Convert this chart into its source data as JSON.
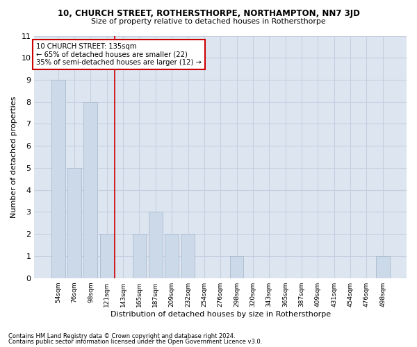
{
  "title": "10, CHURCH STREET, ROTHERSTHORPE, NORTHAMPTON, NN7 3JD",
  "subtitle": "Size of property relative to detached houses in Rothersthorpe",
  "xlabel": "Distribution of detached houses by size in Rothersthorpe",
  "ylabel": "Number of detached properties",
  "footer1": "Contains HM Land Registry data © Crown copyright and database right 2024.",
  "footer2": "Contains public sector information licensed under the Open Government Licence v3.0.",
  "categories": [
    "54sqm",
    "76sqm",
    "98sqm",
    "121sqm",
    "143sqm",
    "165sqm",
    "187sqm",
    "209sqm",
    "232sqm",
    "254sqm",
    "276sqm",
    "298sqm",
    "320sqm",
    "343sqm",
    "365sqm",
    "387sqm",
    "409sqm",
    "431sqm",
    "454sqm",
    "476sqm",
    "498sqm"
  ],
  "values": [
    9,
    5,
    8,
    2,
    0,
    2,
    3,
    2,
    2,
    0,
    0,
    1,
    0,
    0,
    0,
    0,
    0,
    0,
    0,
    0,
    1
  ],
  "bar_color": "#ccd9e8",
  "bar_edge_color": "#aabbd0",
  "grid_color": "#c5cfe0",
  "background_color": "#dde6f0",
  "annotation_text": "10 CHURCH STREET: 135sqm\n← 65% of detached houses are smaller (22)\n35% of semi-detached houses are larger (12) →",
  "annotation_box_color": "#cc0000",
  "vline_x_index": 3.5,
  "vline_color": "#cc0000",
  "ylim": [
    0,
    11
  ],
  "yticks": [
    0,
    1,
    2,
    3,
    4,
    5,
    6,
    7,
    8,
    9,
    10,
    11
  ]
}
